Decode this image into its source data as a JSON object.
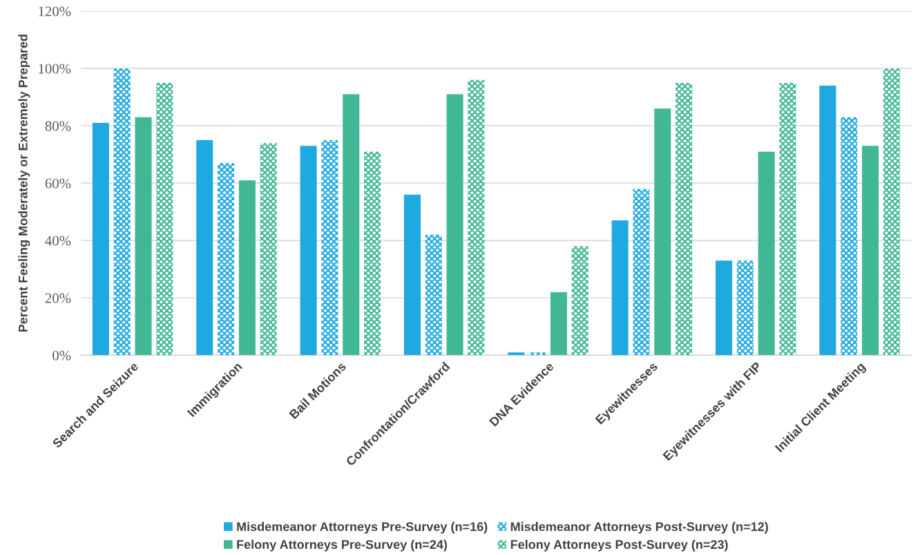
{
  "chart_data": {
    "type": "bar",
    "ylabel": "Percent Feeling Moderately or Extremely Prepared",
    "categories": [
      "Search and Seizure",
      "Immigration",
      "Bail Motions",
      "Confrontation/Crawford",
      "DNA Evidence",
      "Eyewitnesses",
      "Eyewitnesses with FIP",
      "Initial Client Meeting"
    ],
    "series": [
      {
        "name": "Misdemeanor Attorneys Pre-Survey (n=16)",
        "color": "#1ea9e1",
        "values": [
          81,
          75,
          73,
          56,
          1,
          47,
          33,
          94
        ]
      },
      {
        "name": "Misdemeanor Attorneys Post-Survey (n=12)",
        "color": "#1ea9e1",
        "values": [
          100,
          67,
          75,
          42,
          1,
          58,
          33,
          83
        ]
      },
      {
        "name": "Felony Attorneys Pre-Survey (n=24)",
        "color": "#41b796",
        "values": [
          83,
          61,
          91,
          91,
          22,
          86,
          71,
          73
        ]
      },
      {
        "name": "Felony Attorneys Post-Survey (n=23)",
        "color": "#41b796",
        "values": [
          95,
          74,
          71,
          96,
          38,
          95,
          95,
          100
        ]
      }
    ],
    "ylim": [
      0,
      120
    ],
    "yticks": [
      {
        "value": 0,
        "label": "0%"
      },
      {
        "value": 20,
        "label": "20%"
      },
      {
        "value": 40,
        "label": "40%"
      },
      {
        "value": 60,
        "label": "60%"
      },
      {
        "value": 80,
        "label": "80%"
      },
      {
        "value": 100,
        "label": "100%"
      },
      {
        "value": 120,
        "label": "120%"
      }
    ],
    "grid": "y",
    "legend": "bottom"
  }
}
